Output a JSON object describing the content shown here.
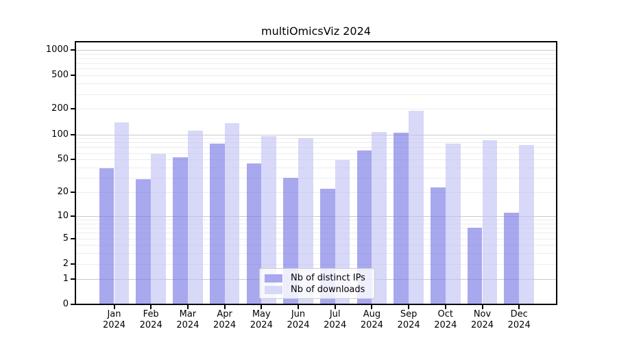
{
  "title": "multiOmicsViz 2024",
  "chart_data": {
    "type": "bar",
    "title": "multiOmicsViz 2024",
    "categories": [
      "Jan",
      "Feb",
      "Mar",
      "Apr",
      "May",
      "Jun",
      "Jul",
      "Aug",
      "Sep",
      "Oct",
      "Nov",
      "Dec"
    ],
    "year": "2024",
    "series": [
      {
        "name": "Nb of distinct IPs",
        "color": "rgba(114,114,229,0.62)",
        "legend_color": "#a8a8ef",
        "values": [
          39,
          29,
          53,
          78,
          45,
          30,
          22,
          64,
          105,
          23,
          7,
          11
        ]
      },
      {
        "name": "Nb of downloads",
        "color": "rgba(192,192,244,0.62)",
        "legend_color": "#d8d8f7",
        "values": [
          139,
          58,
          111,
          136,
          96,
          90,
          49,
          107,
          192,
          78,
          86,
          75
        ]
      }
    ],
    "yticks": [
      0,
      1,
      2,
      5,
      10,
      20,
      50,
      100,
      200,
      500,
      1000
    ],
    "yscale": "log10(value+1)",
    "ylim": [
      0,
      1250
    ],
    "grid": "horizontal major (1,10,100,1000) + minor (2-9 per decade)",
    "legend_position": "bottom-center"
  },
  "colors": {
    "bar_distinct_ips": "rgba(114,114,229,0.62)",
    "bar_downloads": "rgba(192,192,244,0.62)",
    "grid_major": "#c9c9c9",
    "grid_minor": "#ececec",
    "spine": "#000000",
    "background": "#ffffff"
  }
}
